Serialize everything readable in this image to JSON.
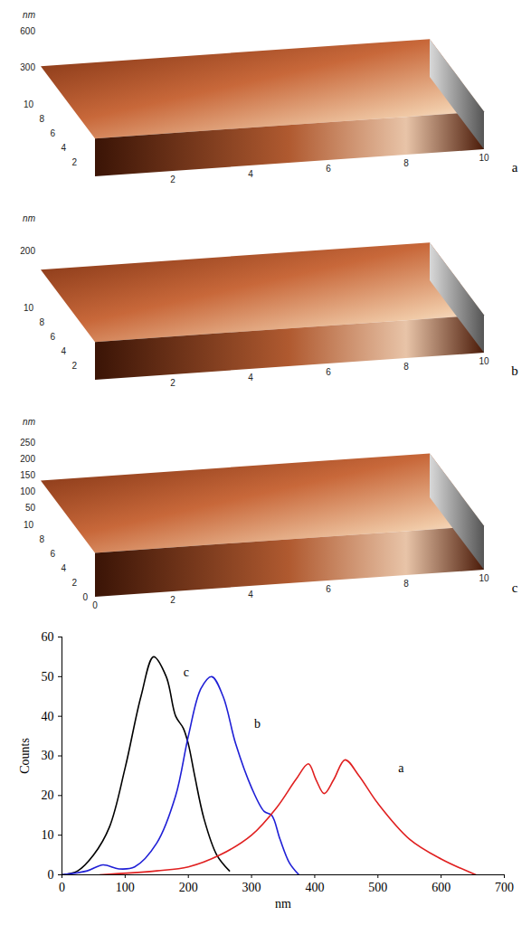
{
  "chart_data": [
    {
      "type": "surface",
      "panel_label": "a",
      "z_label": "nm",
      "zlim": [
        0,
        700
      ],
      "zticks": [
        300,
        600
      ],
      "xlim": [
        0,
        10
      ],
      "xticks": [
        2,
        4,
        6,
        8,
        10
      ],
      "ylim": [
        0,
        10
      ],
      "yticks": [
        2,
        4,
        6,
        8,
        10
      ]
    },
    {
      "type": "surface",
      "panel_label": "b",
      "z_label": "nm",
      "zlim": [
        0,
        300
      ],
      "zticks": [
        200
      ],
      "xlim": [
        0,
        10
      ],
      "xticks": [
        2,
        4,
        6,
        8,
        10
      ],
      "ylim": [
        0,
        10
      ],
      "yticks": [
        2,
        4,
        6,
        8,
        10
      ]
    },
    {
      "type": "surface",
      "panel_label": "c",
      "z_label": "nm",
      "zlim": [
        0,
        300
      ],
      "zticks": [
        50,
        100,
        150,
        200,
        250
      ],
      "xlim": [
        0,
        10
      ],
      "xticks": [
        0,
        2,
        4,
        6,
        8,
        10
      ],
      "ylim": [
        0,
        10
      ],
      "yticks": [
        0,
        2,
        4,
        6,
        8,
        10
      ]
    },
    {
      "type": "line",
      "x_label": "nm",
      "y_label": "Counts",
      "xlim": [
        0,
        700
      ],
      "xticks": [
        0,
        100,
        200,
        300,
        400,
        500,
        600,
        700
      ],
      "ylim": [
        0,
        60
      ],
      "yticks": [
        0,
        10,
        20,
        30,
        40,
        50,
        60
      ],
      "series": [
        {
          "name": "c",
          "color": "#000000",
          "label_x": 188,
          "label_y": 51,
          "x": [
            0,
            25,
            50,
            75,
            100,
            125,
            145,
            165,
            180,
            192,
            200,
            210,
            225,
            245,
            265
          ],
          "values": [
            0,
            1,
            5,
            12,
            27,
            45,
            55,
            50,
            40,
            37,
            33,
            25,
            14,
            5,
            1
          ]
        },
        {
          "name": "b",
          "color": "#1f1fd6",
          "label_x": 300,
          "label_y": 38,
          "x": [
            0,
            40,
            65,
            90,
            115,
            150,
            180,
            200,
            220,
            237,
            255,
            275,
            300,
            320,
            332,
            345,
            360,
            375
          ],
          "values": [
            0,
            1,
            2.5,
            1.5,
            2,
            8,
            20,
            35,
            47,
            50,
            45,
            33,
            22,
            16,
            15,
            9,
            3,
            0
          ]
        },
        {
          "name": "a",
          "color": "#e02020",
          "label_x": 528,
          "label_y": 27,
          "x": [
            60,
            150,
            200,
            250,
            300,
            340,
            370,
            390,
            402,
            415,
            430,
            448,
            470,
            500,
            550,
            600,
            655
          ],
          "values": [
            0,
            1,
            2,
            5,
            10,
            17,
            24,
            28,
            24,
            20.5,
            24,
            29,
            25,
            18,
            9,
            4,
            0
          ]
        }
      ]
    }
  ]
}
